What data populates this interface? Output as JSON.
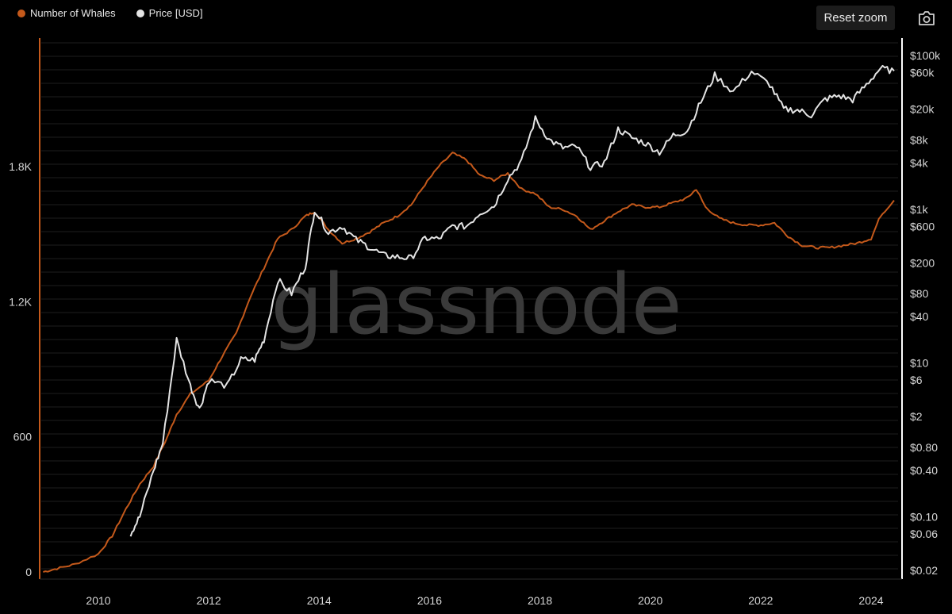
{
  "legend": {
    "whales_label": "Number of Whales",
    "price_label": "Price [USD]"
  },
  "toolbar": {
    "reset_zoom_label": "Reset zoom",
    "camera_icon": "camera-icon"
  },
  "watermark": "glassnode",
  "colors": {
    "whales": "#c4591b",
    "price": "#e4e4e4",
    "background": "#000000",
    "grid": "#1e1e1e",
    "axis": "#ffffff"
  },
  "chart_data": {
    "type": "line",
    "title": "",
    "xlabel": "",
    "x_range": [
      "2008-12",
      "2024-07"
    ],
    "x_ticks": [
      "2010",
      "2012",
      "2014",
      "2016",
      "2018",
      "2020",
      "2022",
      "2024"
    ],
    "y_left": {
      "series": "Number of Whales",
      "range": [
        0,
        1800
      ],
      "ticks": [
        {
          "value": 0,
          "label": "0"
        },
        {
          "value": 600,
          "label": "600"
        },
        {
          "value": 1200,
          "label": "1.2K"
        },
        {
          "value": 1800,
          "label": "1.8K"
        }
      ]
    },
    "y_right": {
      "series": "Price [USD]",
      "scale": "log",
      "range": [
        0.02,
        100000
      ],
      "ticks": [
        {
          "value": 100000,
          "label": "$100k"
        },
        {
          "value": 60000,
          "label": "$60k"
        },
        {
          "value": 20000,
          "label": "$20k"
        },
        {
          "value": 8000,
          "label": "$8k"
        },
        {
          "value": 4000,
          "label": "$4k"
        },
        {
          "value": 1000,
          "label": "$1k"
        },
        {
          "value": 600,
          "label": "$600"
        },
        {
          "value": 200,
          "label": "$200"
        },
        {
          "value": 80,
          "label": "$80"
        },
        {
          "value": 40,
          "label": "$40"
        },
        {
          "value": 10,
          "label": "$10"
        },
        {
          "value": 6,
          "label": "$6"
        },
        {
          "value": 2,
          "label": "$2"
        },
        {
          "value": 0.8,
          "label": "$0.80"
        },
        {
          "value": 0.4,
          "label": "$0.40"
        },
        {
          "value": 0.1,
          "label": "$0.10"
        },
        {
          "value": 0.06,
          "label": "$0.06"
        },
        {
          "value": 0.02,
          "label": "$0.02"
        }
      ]
    },
    "series": [
      {
        "name": "Number of Whales",
        "axis": "left",
        "points": [
          [
            "2009-01",
            0
          ],
          [
            "2009-04",
            15
          ],
          [
            "2009-08",
            35
          ],
          [
            "2010-01",
            80
          ],
          [
            "2010-04",
            160
          ],
          [
            "2010-07",
            280
          ],
          [
            "2010-10",
            390
          ],
          [
            "2011-01",
            470
          ],
          [
            "2011-04",
            600
          ],
          [
            "2011-06",
            700
          ],
          [
            "2011-09",
            790
          ],
          [
            "2012-01",
            850
          ],
          [
            "2012-04",
            960
          ],
          [
            "2012-07",
            1060
          ],
          [
            "2012-10",
            1220
          ],
          [
            "2013-01",
            1350
          ],
          [
            "2013-04",
            1480
          ],
          [
            "2013-07",
            1520
          ],
          [
            "2013-10",
            1580
          ],
          [
            "2013-12",
            1600
          ],
          [
            "2014-03",
            1520
          ],
          [
            "2014-06",
            1460
          ],
          [
            "2014-09",
            1480
          ],
          [
            "2014-12",
            1510
          ],
          [
            "2015-03",
            1550
          ],
          [
            "2015-06",
            1580
          ],
          [
            "2015-09",
            1630
          ],
          [
            "2015-12",
            1720
          ],
          [
            "2016-03",
            1800
          ],
          [
            "2016-06",
            1860
          ],
          [
            "2016-09",
            1830
          ],
          [
            "2016-12",
            1760
          ],
          [
            "2017-03",
            1740
          ],
          [
            "2017-06",
            1770
          ],
          [
            "2017-09",
            1700
          ],
          [
            "2017-12",
            1680
          ],
          [
            "2018-03",
            1620
          ],
          [
            "2018-06",
            1610
          ],
          [
            "2018-09",
            1580
          ],
          [
            "2018-12",
            1520
          ],
          [
            "2019-03",
            1560
          ],
          [
            "2019-06",
            1600
          ],
          [
            "2019-09",
            1630
          ],
          [
            "2019-12",
            1620
          ],
          [
            "2020-03",
            1620
          ],
          [
            "2020-06",
            1640
          ],
          [
            "2020-09",
            1660
          ],
          [
            "2020-11",
            1700
          ],
          [
            "2021-01",
            1620
          ],
          [
            "2021-04",
            1570
          ],
          [
            "2021-07",
            1550
          ],
          [
            "2021-10",
            1540
          ],
          [
            "2022-01",
            1540
          ],
          [
            "2022-04",
            1550
          ],
          [
            "2022-07",
            1490
          ],
          [
            "2022-10",
            1450
          ],
          [
            "2023-01",
            1440
          ],
          [
            "2023-04",
            1440
          ],
          [
            "2023-07",
            1450
          ],
          [
            "2023-10",
            1460
          ],
          [
            "2024-01",
            1480
          ],
          [
            "2024-03",
            1580
          ],
          [
            "2024-06",
            1650
          ]
        ]
      },
      {
        "name": "Price [USD]",
        "axis": "right",
        "points": [
          [
            "2010-08",
            0.06
          ],
          [
            "2010-10",
            0.1
          ],
          [
            "2011-01",
            0.4
          ],
          [
            "2011-03",
            0.9
          ],
          [
            "2011-06",
            20
          ],
          [
            "2011-09",
            5
          ],
          [
            "2011-11",
            2.5
          ],
          [
            "2012-01",
            6
          ],
          [
            "2012-05",
            5
          ],
          [
            "2012-08",
            11
          ],
          [
            "2012-11",
            11
          ],
          [
            "2013-01",
            20
          ],
          [
            "2013-04",
            120
          ],
          [
            "2013-07",
            80
          ],
          [
            "2013-10",
            180
          ],
          [
            "2013-12",
            1000
          ],
          [
            "2014-03",
            500
          ],
          [
            "2014-06",
            600
          ],
          [
            "2014-09",
            400
          ],
          [
            "2014-12",
            320
          ],
          [
            "2015-03",
            250
          ],
          [
            "2015-06",
            240
          ],
          [
            "2015-09",
            230
          ],
          [
            "2015-12",
            420
          ],
          [
            "2016-03",
            410
          ],
          [
            "2016-06",
            600
          ],
          [
            "2016-09",
            600
          ],
          [
            "2016-12",
            900
          ],
          [
            "2017-03",
            1100
          ],
          [
            "2017-06",
            2500
          ],
          [
            "2017-09",
            4200
          ],
          [
            "2017-12",
            15000
          ],
          [
            "2018-03",
            8000
          ],
          [
            "2018-06",
            6300
          ],
          [
            "2018-09",
            6500
          ],
          [
            "2018-12",
            3500
          ],
          [
            "2019-03",
            4000
          ],
          [
            "2019-06",
            11000
          ],
          [
            "2019-09",
            8500
          ],
          [
            "2019-12",
            7200
          ],
          [
            "2020-03",
            5500
          ],
          [
            "2020-06",
            9200
          ],
          [
            "2020-09",
            10500
          ],
          [
            "2020-12",
            25000
          ],
          [
            "2021-03",
            55000
          ],
          [
            "2021-07",
            34000
          ],
          [
            "2021-11",
            62000
          ],
          [
            "2022-03",
            42000
          ],
          [
            "2022-06",
            20000
          ],
          [
            "2022-09",
            19500
          ],
          [
            "2022-12",
            16800
          ],
          [
            "2023-03",
            27000
          ],
          [
            "2023-06",
            30000
          ],
          [
            "2023-09",
            26500
          ],
          [
            "2023-12",
            42000
          ],
          [
            "2024-03",
            68000
          ],
          [
            "2024-06",
            63000
          ]
        ]
      }
    ],
    "grid": true,
    "legend_position": "top-left"
  }
}
